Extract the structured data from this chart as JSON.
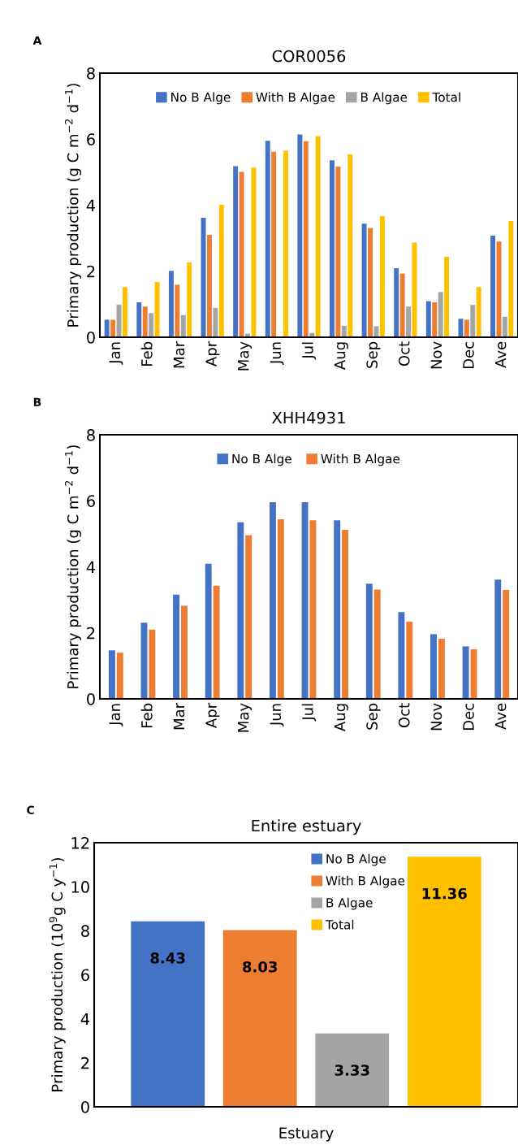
{
  "chart_data": [
    {
      "type": "bar",
      "title": "COR0056",
      "ylabel": "Primary production (g C m$^{−2}$ d$^{−1}$)",
      "annotations": [
        "A"
      ],
      "categories": [
        "Jan",
        "Feb",
        "Mar",
        "Apr",
        "May",
        "Jun",
        "Jul",
        "Aug",
        "Sep",
        "Oct",
        "Nov",
        "Dec",
        "Ave"
      ],
      "series": [
        {
          "name": "No B Alge",
          "color": "#4472c4",
          "values": [
            0.53,
            1.06,
            2.01,
            3.62,
            5.18,
            5.95,
            6.14,
            5.36,
            3.44,
            2.09,
            1.09,
            0.56,
            3.08
          ]
        },
        {
          "name": "With B Algae",
          "color": "#ed7d31",
          "values": [
            0.53,
            0.93,
            1.59,
            3.1,
            5.01,
            5.62,
            5.94,
            5.17,
            3.31,
            1.93,
            1.06,
            0.53,
            2.9
          ]
        },
        {
          "name": "B Algae",
          "color": "#a5a5a5",
          "values": [
            0.99,
            0.73,
            0.67,
            0.89,
            0.11,
            0,
            0.13,
            0.35,
            0.33,
            0.93,
            1.37,
            0.98,
            0.62
          ]
        },
        {
          "name": "Total",
          "color": "#ffc000",
          "values": [
            1.52,
            1.67,
            2.27,
            4.01,
            5.14,
            5.65,
            6.09,
            5.54,
            3.67,
            2.87,
            2.44,
            1.52,
            3.52
          ]
        }
      ],
      "ylim": [
        0,
        8
      ],
      "yticks": [
        0,
        2,
        4,
        6,
        8
      ],
      "legend": "top"
    },
    {
      "type": "bar",
      "title": "XHH4931",
      "ylabel": "Primary production (g C m$^{−2}$ d$^{−1}$)",
      "annotations": [
        "B"
      ],
      "categories": [
        "Jan",
        "Feb",
        "Mar",
        "Apr",
        "May",
        "Jun",
        "Jul",
        "Aug",
        "Sep",
        "Oct",
        "Nov",
        "Dec",
        "Ave"
      ],
      "series": [
        {
          "name": "No B Alge",
          "color": "#4472c4",
          "values": [
            1.47,
            2.31,
            3.16,
            4.09,
            5.35,
            5.96,
            5.96,
            5.41,
            3.49,
            2.63,
            1.96,
            1.59,
            3.61
          ]
        },
        {
          "name": "With B Algae",
          "color": "#ed7d31",
          "values": [
            1.4,
            2.1,
            2.82,
            3.43,
            4.96,
            5.44,
            5.41,
            5.12,
            3.31,
            2.34,
            1.82,
            1.5,
            3.3
          ]
        }
      ],
      "ylim": [
        0,
        8
      ],
      "yticks": [
        0,
        2,
        4,
        6,
        8
      ],
      "legend": "top"
    },
    {
      "type": "bar",
      "title": "Entire estuary",
      "ylabel": "Primary production (10$^{9}$g C y$^{−1}$)",
      "annotations": [
        "C"
      ],
      "categories": [
        "Estuary"
      ],
      "series": [
        {
          "name": "No B Alge",
          "color": "#4472c4",
          "values": [
            8.43
          ]
        },
        {
          "name": "With B Algae",
          "color": "#ed7d31",
          "values": [
            8.03
          ]
        },
        {
          "name": "B Algae",
          "color": "#a5a5a5",
          "values": [
            3.33
          ]
        },
        {
          "name": "Total",
          "color": "#ffc000",
          "values": [
            11.36
          ]
        }
      ],
      "ylim": [
        0,
        12
      ],
      "yticks": [
        0,
        2,
        4,
        6,
        8,
        10,
        12
      ],
      "legend": "top right",
      "data_labels": true
    }
  ]
}
